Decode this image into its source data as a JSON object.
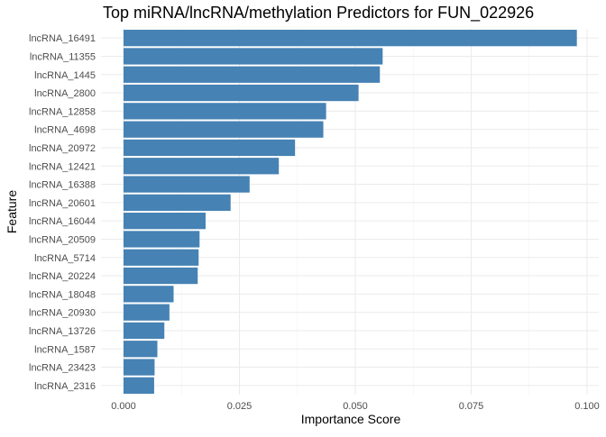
{
  "chart_data": {
    "type": "bar",
    "orientation": "horizontal",
    "title": "Top miRNA/lncRNA/methylation Predictors for FUN_022926",
    "xlabel": "Importance Score",
    "ylabel": "Feature",
    "xlim": [
      0,
      0.1
    ],
    "x_ticks": [
      0,
      0.025,
      0.05,
      0.075,
      0.1
    ],
    "x_tick_labels": [
      "0.000",
      "0.025",
      "0.050",
      "0.075",
      "0.100"
    ],
    "grid": true,
    "bar_color": "#4682B4",
    "categories": [
      "lncRNA_16491",
      "lncRNA_11355",
      "lncRNA_1445",
      "lncRNA_2800",
      "lncRNA_12858",
      "lncRNA_4698",
      "lncRNA_20972",
      "lncRNA_12421",
      "lncRNA_16388",
      "lncRNA_20601",
      "lncRNA_16044",
      "lncRNA_20509",
      "lncRNA_5714",
      "lncRNA_20224",
      "lncRNA_18048",
      "lncRNA_20930",
      "lncRNA_13726",
      "lncRNA_1587",
      "lncRNA_23423",
      "lncRNA_2316"
    ],
    "values": [
      0.0978,
      0.0559,
      0.0553,
      0.0507,
      0.0437,
      0.0431,
      0.037,
      0.0335,
      0.0272,
      0.0231,
      0.0177,
      0.0164,
      0.0162,
      0.016,
      0.0108,
      0.0099,
      0.0088,
      0.0073,
      0.0067,
      0.0066
    ]
  }
}
